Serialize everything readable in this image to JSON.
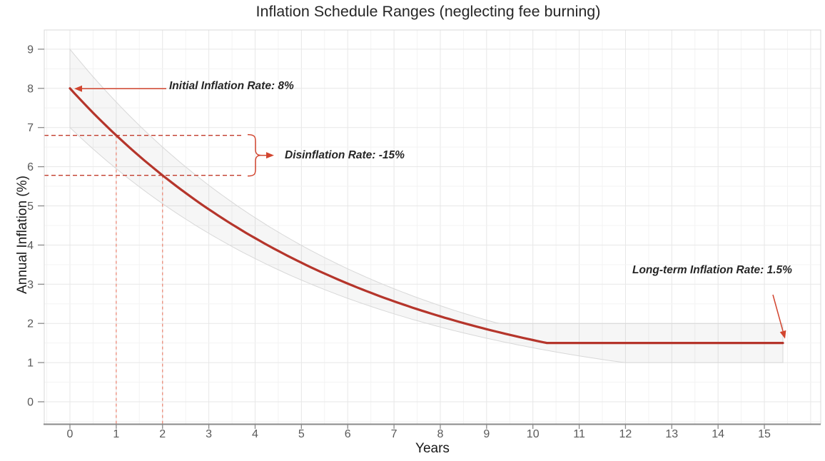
{
  "title": "Inflation Schedule Ranges (neglecting fee burning)",
  "chart_data": {
    "type": "line",
    "title": "Inflation Schedule Ranges (neglecting fee burning)",
    "xlabel": "Years",
    "ylabel": "Annual Inflation (%)",
    "x_ticks": [
      0,
      1,
      2,
      3,
      4,
      5,
      6,
      7,
      8,
      9,
      10,
      11,
      12,
      13,
      14,
      15
    ],
    "y_ticks": [
      0,
      1,
      2,
      3,
      4,
      5,
      6,
      7,
      8,
      9
    ],
    "xlim": [
      -0.55,
      16.2
    ],
    "ylim": [
      -0.57,
      9.49
    ],
    "grid": "major and minor gridlines, light gray, half-unit minors",
    "legend": "none",
    "x": [
      0,
      1,
      2,
      3,
      4,
      5,
      6,
      7,
      8,
      9,
      10,
      11,
      12,
      13,
      14,
      15
    ],
    "series": [
      {
        "name": "schedule",
        "values": [
          8.0,
          6.8,
          5.78,
          4.91,
          4.18,
          3.55,
          3.02,
          2.57,
          2.18,
          1.85,
          1.57,
          1.5,
          1.5,
          1.5,
          1.5,
          1.5
        ]
      },
      {
        "name": "upper_bound",
        "values": [
          9.0,
          7.65,
          6.5,
          5.53,
          4.7,
          3.99,
          3.39,
          2.89,
          2.45,
          2.08,
          2.0,
          2.0,
          2.0,
          2.0,
          2.0,
          2.0
        ]
      },
      {
        "name": "lower_bound",
        "values": [
          7.0,
          5.95,
          5.06,
          4.3,
          3.65,
          3.11,
          2.64,
          2.24,
          1.91,
          1.62,
          1.38,
          1.17,
          1.0,
          1.0,
          1.0,
          1.0
        ]
      }
    ],
    "model": {
      "initial_rate_pct": 8,
      "disinflation_rate_pct": -15,
      "long_term_rate_pct": 1.5,
      "band_upper": {
        "initial_pct": 9,
        "floor_pct": 2
      },
      "band_lower": {
        "initial_pct": 7,
        "floor_pct": 1
      },
      "t_end_years": 15.45
    },
    "annotations": {
      "initial": {
        "label": "Initial Inflation Rate: 8%",
        "anchor": {
          "x": 0,
          "y": 8
        }
      },
      "disinflation": {
        "label": "Disinflation Rate: -15%",
        "between_y": [
          6.8,
          5.78
        ],
        "guide_years": [
          1,
          2
        ]
      },
      "longterm": {
        "label": "Long-term Inflation Rate: 1.5%",
        "anchor": {
          "x": 15.45,
          "y": 1.5
        }
      }
    }
  },
  "colors": {
    "line": "#b5352b",
    "annotation": "#d2452f",
    "guide_dark": "#c13b2b",
    "guide_light": "#ec8a78",
    "band_fill": "rgba(125,125,125,0.07)",
    "band_edge": "#d8d8d8",
    "grid_major": "#e7e7e7",
    "grid_minor": "#f3f3f3",
    "axis": "#8a8a8a",
    "panel_border": "#d9d9d9",
    "tick_text": "#595959",
    "text": "#262626"
  }
}
